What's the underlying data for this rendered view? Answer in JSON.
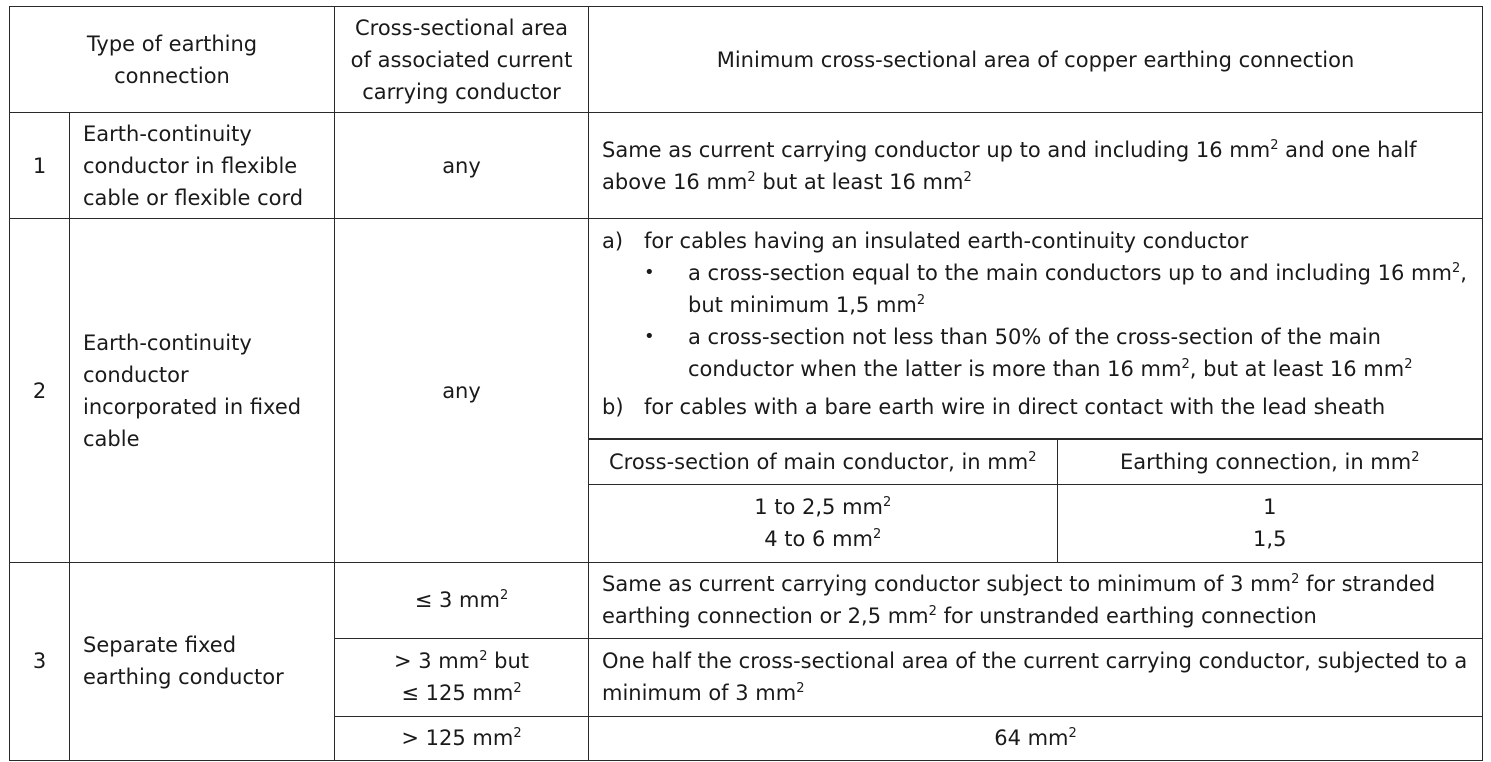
{
  "header": {
    "type": "Type of earthing connection",
    "area": "Cross-sectional area of associated current carrying conductor",
    "minimum": "Minimum cross-sectional area of copper earthing connection"
  },
  "unit_sup": "2",
  "row1": {
    "num": "1",
    "type": "Earth-continuity conductor in flexible cable or flexible cord",
    "area": "any",
    "minimum_part1": "Same as current carrying conductor up to and including 16 mm",
    "minimum_part2": " and one half above 16 mm",
    "minimum_part3": " but at least 16 mm"
  },
  "row2": {
    "num": "2",
    "type": "Earth-continuity conductor incorporated in fixed cable",
    "area": "any",
    "a_marker": "a)",
    "a_text": "for cables having an insulated earth-continuity conductor",
    "bullet_marker": "•",
    "bullet1_part1": "a cross-section equal to the main conductors up to and including 16 mm",
    "bullet1_part2": ", but minimum 1,5 mm",
    "bullet2_part1": "a cross-section not less than 50% of the cross-section of the main conductor when the latter is more than 16 mm",
    "bullet2_part2": ", but at least 16 mm",
    "b_marker": "b)",
    "b_text": "for cables with a bare earth wire in direct contact with the lead sheath",
    "sub_header_left": "Cross-section of main conductor, in mm",
    "sub_header_right": "Earthing connection, in mm",
    "sub_rows": [
      {
        "main": "1 to 2,5 mm",
        "earth": "1"
      },
      {
        "main": "4 to 6 mm",
        "earth": "1,5"
      }
    ]
  },
  "row3": {
    "num": "3",
    "type": "Separate fixed earthing conductor",
    "sub_rows": [
      {
        "area": "≤ 3 mm",
        "minimum_part1": "Same as current carrying conductor subject to minimum of 3 mm",
        "minimum_part2": " for stranded earthing connection or 2,5 mm",
        "minimum_part3": " for unstranded earthing connection"
      },
      {
        "area_part1": "> 3 mm",
        "area_part2": " but",
        "area_part3": "≤ 125 mm",
        "minimum_part1": "One half the cross-sectional area of the current carrying conductor, subjected to a minimum of 3 mm"
      },
      {
        "area": "> 125 mm",
        "minimum": "64 mm"
      }
    ]
  }
}
